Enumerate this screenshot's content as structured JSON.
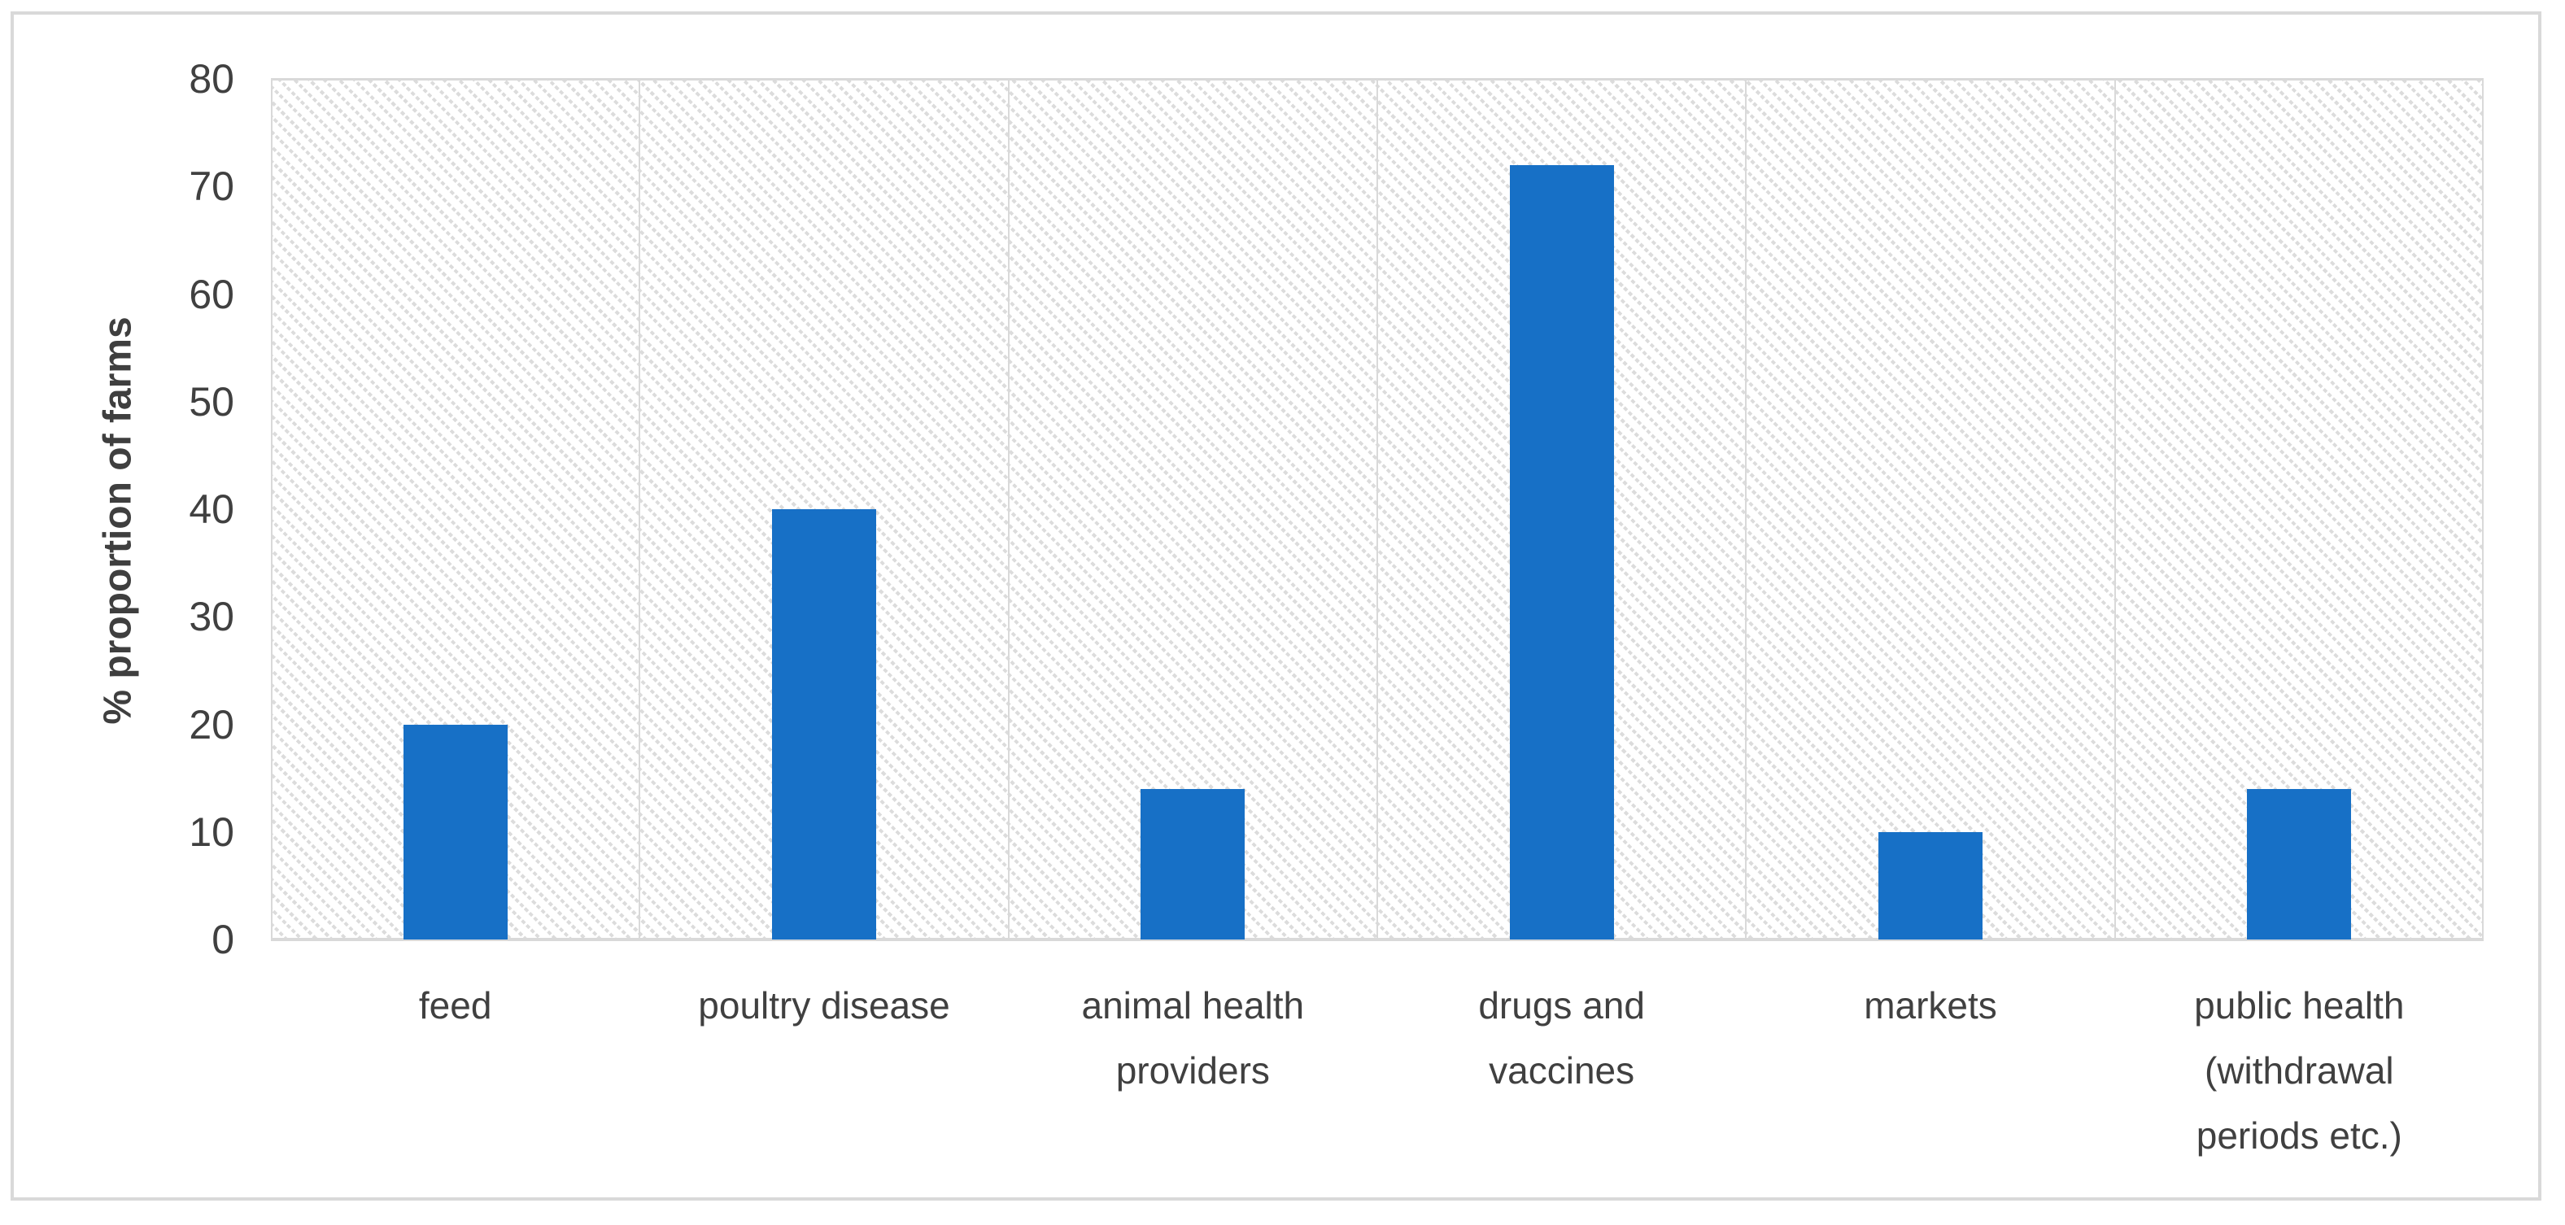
{
  "figure": {
    "kind": "excel-style bar chart figure",
    "frame_color": "#d9d9d9",
    "background": "#ffffff"
  },
  "chart_data": {
    "type": "bar",
    "title": "",
    "xlabel": "",
    "ylabel": "% proportion of farms",
    "categories": [
      "feed",
      "poultry disease",
      "animal health providers",
      "drugs and vaccines",
      "markets",
      "public health (withdrawal periods etc.)"
    ],
    "category_lines": [
      [
        "feed"
      ],
      [
        "poultry disease"
      ],
      [
        "animal health",
        "providers"
      ],
      [
        "drugs and",
        "vaccines"
      ],
      [
        "markets"
      ],
      [
        "public health",
        "(withdrawal",
        "periods etc.)"
      ]
    ],
    "values": [
      20,
      40,
      14,
      72,
      10,
      14
    ],
    "ylim": [
      0,
      80
    ],
    "yticks": [
      0,
      10,
      20,
      30,
      40,
      50,
      60,
      70,
      80
    ],
    "grid": "horizontal gridlines at every 10, vertical separators between categories",
    "legend": "none",
    "plot_bg_pattern": "light gray dotted downward-diagonal hatch",
    "bar_color": "#1770c6",
    "gridline_color": "#d9d9d9",
    "text_color": "#404040"
  }
}
